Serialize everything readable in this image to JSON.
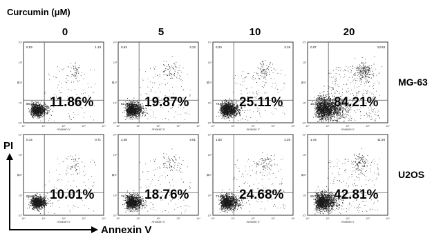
{
  "figure": {
    "title": "Curcumin (μM)",
    "y_axis_label": "PI",
    "x_axis_label": "Annexin V"
  },
  "chart_data": {
    "type": "scatter",
    "title": "Curcumin (μM)",
    "xlabel": "Annexin V",
    "ylabel": "PI",
    "scale": "log",
    "columns": [
      "0",
      "5",
      "10",
      "20"
    ],
    "rows": [
      "MG-63",
      "U2OS"
    ],
    "panel_axis_labels": {
      "x": "Annexin V",
      "y": "PI"
    },
    "panels": [
      {
        "row": "MG-63",
        "column": "0",
        "apoptosis_total": "11.86%",
        "quadrants": {
          "UL": "0.03",
          "UR": "1.13",
          "LL": "88.00",
          "LR": ""
        }
      },
      {
        "row": "MG-63",
        "column": "5",
        "apoptosis_total": "19.87%",
        "quadrants": {
          "UL": "0.63",
          "UR": "3.22",
          "LL": "82.47",
          "LR": ""
        }
      },
      {
        "row": "MG-63",
        "column": "10",
        "apoptosis_total": "25.11%",
        "quadrants": {
          "UL": "0.20",
          "UR": "3.19",
          "LL": "74.68",
          "LR": ""
        }
      },
      {
        "row": "MG-63",
        "column": "20",
        "apoptosis_total": "84.21%",
        "quadrants": {
          "UL": "0.07",
          "UR": "13.83",
          "LL": "15.72",
          "LR": ""
        }
      },
      {
        "row": "U2OS",
        "column": "0",
        "apoptosis_total": "10.01%",
        "quadrants": {
          "UL": "0.14",
          "UR": "0.71",
          "LL": "89.85",
          "LR": ""
        }
      },
      {
        "row": "U2OS",
        "column": "5",
        "apoptosis_total": "18.76%",
        "quadrants": {
          "UL": "2.48",
          "UR": "4.01",
          "LL": "78.76",
          "LR": ""
        }
      },
      {
        "row": "U2OS",
        "column": "10",
        "apoptosis_total": "24.68%",
        "quadrants": {
          "UL": "1.63",
          "UR": "4.25",
          "LL": "73.68",
          "LR": ""
        }
      },
      {
        "row": "U2OS",
        "column": "20",
        "apoptosis_total": "42.81%",
        "quadrants": {
          "UL": "1.44",
          "UR": "11.93",
          "LL": "55.75",
          "LR": ""
        }
      }
    ],
    "density": [
      [
        0.12,
        0.2,
        0.28,
        0.84
      ],
      [
        0.1,
        0.19,
        0.25,
        0.43
      ]
    ],
    "tick_labels": [
      "10⁰",
      "10¹",
      "10²",
      "10³",
      "10⁴"
    ],
    "colors": {
      "points": "#1a1a1a",
      "frame": "#333333",
      "text": "#000000"
    }
  }
}
